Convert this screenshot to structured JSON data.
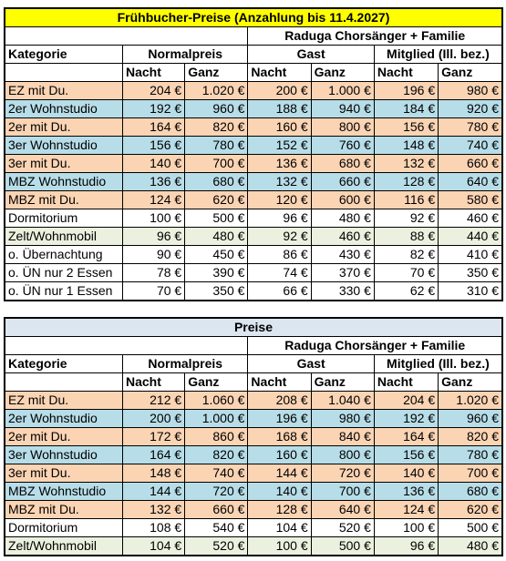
{
  "tables": [
    {
      "title": "Frühbucher-Preise (Anzahlung bis 11.4.2027)",
      "group_header": "Raduga Chorsänger + Familie",
      "columns": {
        "category": "Kategorie",
        "normal": "Normalpreis",
        "guest": "Gast",
        "member": "Mitglied (Ill. bez.)"
      },
      "subcolumns": [
        "Nacht",
        "Ganz",
        "Nacht",
        "Ganz",
        "Nacht",
        "Ganz"
      ],
      "rows": [
        {
          "label": "EZ mit Du.",
          "cells": [
            "204 €",
            "1.020 €",
            "200 €",
            "1.000 €",
            "196 €",
            "980 €"
          ]
        },
        {
          "label": "2er Wohnstudio",
          "cells": [
            "192 €",
            "960 €",
            "188 €",
            "940 €",
            "184 €",
            "920 €"
          ]
        },
        {
          "label": "2er mit Du.",
          "cells": [
            "164 €",
            "820 €",
            "160 €",
            "800 €",
            "156 €",
            "780 €"
          ]
        },
        {
          "label": "3er Wohnstudio",
          "cells": [
            "156 €",
            "780 €",
            "152 €",
            "760 €",
            "148 €",
            "740 €"
          ]
        },
        {
          "label": "3er mit Du.",
          "cells": [
            "140 €",
            "700 €",
            "136 €",
            "680 €",
            "132 €",
            "660 €"
          ]
        },
        {
          "label": "MBZ Wohnstudio",
          "cells": [
            "136 €",
            "680 €",
            "132 €",
            "660 €",
            "128 €",
            "640 €"
          ]
        },
        {
          "label": "MBZ mit Du.",
          "cells": [
            "124 €",
            "620 €",
            "120 €",
            "600 €",
            "116 €",
            "580 €"
          ]
        },
        {
          "label": "Dormitorium",
          "cells": [
            "100 €",
            "500 €",
            "96 €",
            "480 €",
            "92 €",
            "460 €"
          ]
        },
        {
          "label": "Zelt/Wohnmobil",
          "cells": [
            "96 €",
            "480 €",
            "92 €",
            "460 €",
            "88 €",
            "440 €"
          ]
        },
        {
          "label": "o. Übernachtung",
          "cells": [
            "90 €",
            "450 €",
            "86 €",
            "430 €",
            "82 €",
            "410 €"
          ]
        },
        {
          "label": "o. ÜN nur 2 Essen",
          "cells": [
            "78 €",
            "390 €",
            "74 €",
            "370 €",
            "70 €",
            "350 €"
          ]
        },
        {
          "label": "o. ÜN nur 1 Essen",
          "cells": [
            "70 €",
            "350 €",
            "66 €",
            "330 €",
            "62 €",
            "310 €"
          ]
        }
      ]
    },
    {
      "title": "Preise",
      "group_header": "Raduga Chorsänger + Familie",
      "columns": {
        "category": "Kategorie",
        "normal": "Normalpreis",
        "guest": "Gast",
        "member": "Mitglied (Ill. bez.)"
      },
      "subcolumns": [
        "Nacht",
        "Ganz",
        "Nacht",
        "Ganz",
        "Nacht",
        "Ganz"
      ],
      "rows": [
        {
          "label": "EZ mit Du.",
          "cells": [
            "212 €",
            "1.060 €",
            "208 €",
            "1.040 €",
            "204 €",
            "1.020 €"
          ]
        },
        {
          "label": "2er Wohnstudio",
          "cells": [
            "200 €",
            "1.000 €",
            "196 €",
            "980 €",
            "192 €",
            "960 €"
          ]
        },
        {
          "label": "2er mit Du.",
          "cells": [
            "172 €",
            "860 €",
            "168 €",
            "840 €",
            "164 €",
            "820 €"
          ]
        },
        {
          "label": "3er Wohnstudio",
          "cells": [
            "164 €",
            "820 €",
            "160 €",
            "800 €",
            "156 €",
            "780 €"
          ]
        },
        {
          "label": "3er mit Du.",
          "cells": [
            "148 €",
            "740 €",
            "144 €",
            "720 €",
            "140 €",
            "700 €"
          ]
        },
        {
          "label": "MBZ Wohnstudio",
          "cells": [
            "144 €",
            "720 €",
            "140 €",
            "700 €",
            "136 €",
            "680 €"
          ]
        },
        {
          "label": "MBZ mit Du.",
          "cells": [
            "132 €",
            "660 €",
            "128 €",
            "640 €",
            "124 €",
            "620 €"
          ]
        },
        {
          "label": "Dormitorium",
          "cells": [
            "108 €",
            "540 €",
            "104 €",
            "520 €",
            "100 €",
            "500 €"
          ]
        },
        {
          "label": "Zelt/Wohnmobil",
          "cells": [
            "104 €",
            "520 €",
            "100 €",
            "500 €",
            "96 €",
            "480 €"
          ]
        }
      ]
    }
  ]
}
